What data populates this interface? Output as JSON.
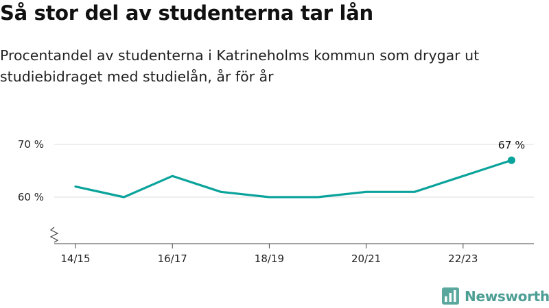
{
  "title": "Så stor del av studenterna tar lån",
  "subtitle": "Procentandel av studenterna i Katrineholms kommun som drygar ut studiebidraget med studielån, år för år",
  "brand": {
    "name": "Newsworthy",
    "icon": "newsworthy-logo-icon"
  },
  "colors": {
    "line": "#0aa39b",
    "grid": "#dddddd",
    "axis": "#444444",
    "text": "#111111"
  },
  "chart_data": {
    "type": "line",
    "title": "",
    "xlabel": "",
    "ylabel": "",
    "x": [
      "14/15",
      "15/16",
      "16/17",
      "17/18",
      "18/19",
      "19/20",
      "20/21",
      "21/22",
      "22/23",
      "23/24"
    ],
    "xticks": [
      "14/15",
      "16/17",
      "18/19",
      "20/21",
      "22/23"
    ],
    "yticks": [
      {
        "value": 60,
        "label": "60 %"
      },
      {
        "value": 70,
        "label": "70 %"
      }
    ],
    "ylim": [
      50,
      70
    ],
    "broken_y_axis": true,
    "grid": true,
    "series": [
      {
        "values": [
          62,
          60,
          64,
          61,
          60,
          60,
          61,
          61,
          64,
          67
        ]
      }
    ],
    "annotations": [
      {
        "index": 9,
        "label": "67 %"
      }
    ]
  }
}
